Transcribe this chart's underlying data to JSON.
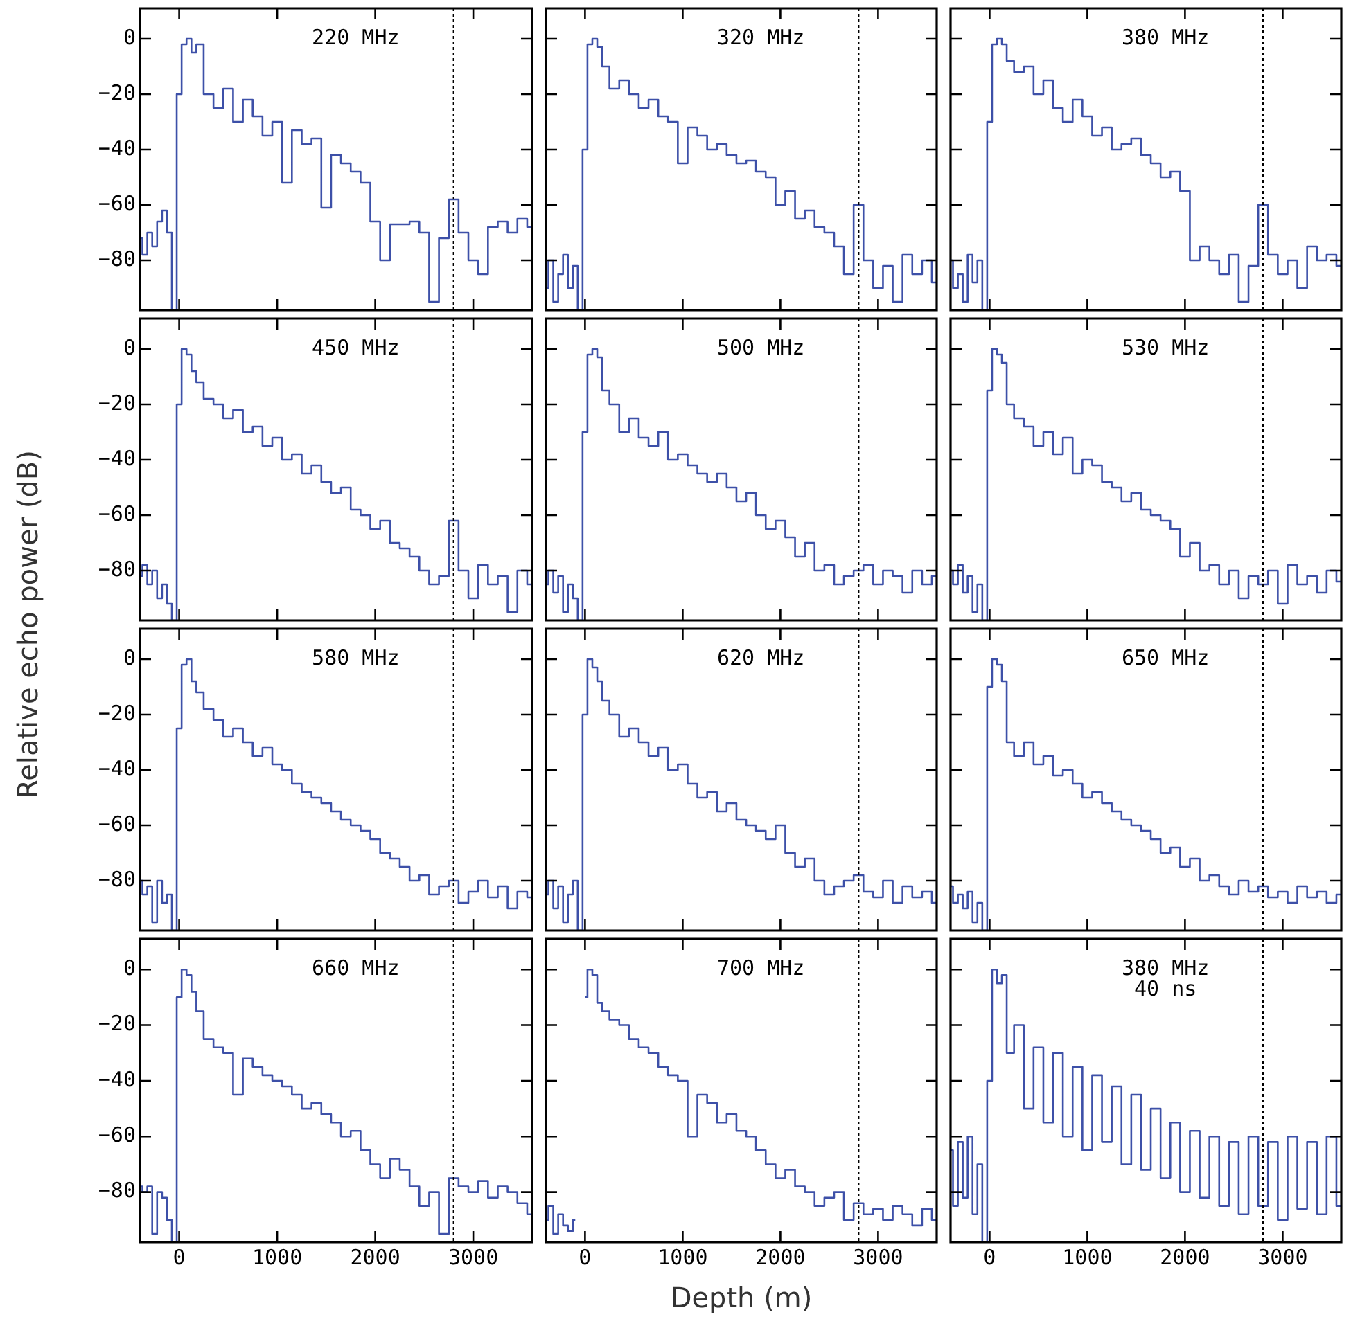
{
  "chart_data": [
    {
      "type": "step",
      "marker": "none",
      "color": "#3d50a8",
      "tick_labels": "y",
      "xlim": [
        -400,
        3600
      ],
      "ylim": [
        -98,
        11
      ],
      "xticks": [
        0,
        1000,
        2000,
        3000
      ],
      "yticks": [
        0,
        -20,
        -40,
        -60,
        -80
      ],
      "annotations": [
        "220 MHz"
      ],
      "ref_lines": [
        {
          "axis": "x",
          "value": 2800,
          "color": "#000000",
          "line_style": "dotted"
        }
      ],
      "x": [
        -400,
        -350,
        -300,
        -250,
        -200,
        -150,
        -100,
        -50,
        0,
        50,
        100,
        150,
        200,
        300,
        400,
        500,
        600,
        700,
        800,
        900,
        1000,
        1100,
        1200,
        1300,
        1400,
        1500,
        1600,
        1700,
        1800,
        1900,
        2000,
        2100,
        2200,
        2300,
        2400,
        2500,
        2600,
        2700,
        2800,
        2900,
        3000,
        3100,
        3200,
        3300,
        3400,
        3500,
        3600
      ],
      "values": [
        -72,
        -78,
        -70,
        -75,
        -66,
        -62,
        -70,
        -98,
        -20,
        -2,
        0,
        -5,
        -2,
        -20,
        -25,
        -18,
        -30,
        -22,
        -28,
        -35,
        -30,
        -52,
        -33,
        -38,
        -36,
        -61,
        -42,
        -45,
        -48,
        -52,
        -66,
        -80,
        -67,
        -67,
        -66,
        -70,
        -95,
        -72,
        -58,
        -70,
        -80,
        -85,
        -68,
        -66,
        -70,
        -65,
        -68
      ]
    },
    {
      "type": "step",
      "marker": "none",
      "color": "#3d50a8",
      "tick_labels": false,
      "xlim": [
        -400,
        3600
      ],
      "ylim": [
        -98,
        11
      ],
      "xticks": [
        0,
        1000,
        2000,
        3000
      ],
      "yticks": [
        0,
        -20,
        -40,
        -60,
        -80
      ],
      "annotations": [
        "320 MHz"
      ],
      "ref_lines": [
        {
          "axis": "x",
          "value": 2800,
          "color": "#000000",
          "line_style": "dotted"
        }
      ],
      "x": [
        -400,
        -350,
        -300,
        -250,
        -200,
        -150,
        -100,
        -50,
        0,
        50,
        100,
        150,
        200,
        300,
        400,
        500,
        600,
        700,
        800,
        900,
        1000,
        1100,
        1200,
        1300,
        1400,
        1500,
        1600,
        1700,
        1800,
        1900,
        2000,
        2100,
        2200,
        2300,
        2400,
        2500,
        2600,
        2700,
        2800,
        2900,
        3000,
        3100,
        3200,
        3300,
        3400,
        3500,
        3600
      ],
      "values": [
        -90,
        -80,
        -95,
        -85,
        -78,
        -90,
        -82,
        -98,
        -40,
        -2,
        0,
        -3,
        -10,
        -18,
        -15,
        -20,
        -25,
        -22,
        -28,
        -30,
        -45,
        -32,
        -35,
        -40,
        -38,
        -42,
        -45,
        -44,
        -48,
        -50,
        -60,
        -55,
        -65,
        -62,
        -68,
        -70,
        -75,
        -85,
        -60,
        -80,
        -90,
        -82,
        -95,
        -78,
        -85,
        -80,
        -88
      ]
    },
    {
      "type": "step",
      "marker": "none",
      "color": "#3d50a8",
      "tick_labels": false,
      "xlim": [
        -400,
        3600
      ],
      "ylim": [
        -98,
        11
      ],
      "xticks": [
        0,
        1000,
        2000,
        3000
      ],
      "yticks": [
        0,
        -20,
        -40,
        -60,
        -80
      ],
      "annotations": [
        "380 MHz"
      ],
      "ref_lines": [
        {
          "axis": "x",
          "value": 2800,
          "color": "#000000",
          "line_style": "dotted"
        }
      ],
      "x": [
        -400,
        -350,
        -300,
        -250,
        -200,
        -150,
        -100,
        -50,
        0,
        50,
        100,
        150,
        200,
        300,
        400,
        500,
        600,
        700,
        800,
        900,
        1000,
        1100,
        1200,
        1300,
        1400,
        1500,
        1600,
        1700,
        1800,
        1900,
        2000,
        2100,
        2200,
        2300,
        2400,
        2500,
        2600,
        2700,
        2800,
        2900,
        3000,
        3100,
        3200,
        3300,
        3400,
        3500,
        3600
      ],
      "values": [
        -80,
        -90,
        -85,
        -95,
        -78,
        -88,
        -80,
        -98,
        -30,
        -2,
        0,
        -2,
        -8,
        -12,
        -10,
        -20,
        -15,
        -25,
        -30,
        -22,
        -28,
        -35,
        -32,
        -40,
        -38,
        -36,
        -42,
        -45,
        -50,
        -48,
        -55,
        -80,
        -75,
        -80,
        -85,
        -78,
        -95,
        -82,
        -60,
        -78,
        -85,
        -80,
        -90,
        -75,
        -80,
        -78,
        -82
      ]
    },
    {
      "type": "step",
      "marker": "none",
      "color": "#3d50a8",
      "tick_labels": "y",
      "xlim": [
        -400,
        3600
      ],
      "ylim": [
        -98,
        11
      ],
      "xticks": [
        0,
        1000,
        2000,
        3000
      ],
      "yticks": [
        0,
        -20,
        -40,
        -60,
        -80
      ],
      "annotations": [
        "450 MHz"
      ],
      "ref_lines": [
        {
          "axis": "x",
          "value": 2800,
          "color": "#000000",
          "line_style": "dotted"
        }
      ],
      "x": [
        -400,
        -350,
        -300,
        -250,
        -200,
        -150,
        -100,
        -50,
        0,
        50,
        100,
        150,
        200,
        300,
        400,
        500,
        600,
        700,
        800,
        900,
        1000,
        1100,
        1200,
        1300,
        1400,
        1500,
        1600,
        1700,
        1800,
        1900,
        2000,
        2100,
        2200,
        2300,
        2400,
        2500,
        2600,
        2700,
        2800,
        2900,
        3000,
        3100,
        3200,
        3300,
        3400,
        3500,
        3600
      ],
      "values": [
        -82,
        -78,
        -85,
        -80,
        -90,
        -85,
        -92,
        -98,
        -20,
        0,
        -2,
        -8,
        -12,
        -18,
        -20,
        -25,
        -22,
        -30,
        -28,
        -35,
        -32,
        -40,
        -38,
        -45,
        -42,
        -48,
        -52,
        -50,
        -58,
        -60,
        -65,
        -62,
        -70,
        -72,
        -75,
        -80,
        -85,
        -82,
        -62,
        -80,
        -90,
        -78,
        -85,
        -82,
        -95,
        -80,
        -85
      ]
    },
    {
      "type": "step",
      "marker": "none",
      "color": "#3d50a8",
      "tick_labels": false,
      "xlim": [
        -400,
        3600
      ],
      "ylim": [
        -98,
        11
      ],
      "xticks": [
        0,
        1000,
        2000,
        3000
      ],
      "yticks": [
        0,
        -20,
        -40,
        -60,
        -80
      ],
      "annotations": [
        "500 MHz"
      ],
      "ref_lines": [
        {
          "axis": "x",
          "value": 2800,
          "color": "#000000",
          "line_style": "dotted"
        }
      ],
      "x": [
        -400,
        -350,
        -300,
        -250,
        -200,
        -150,
        -100,
        -50,
        0,
        50,
        100,
        150,
        200,
        300,
        400,
        500,
        600,
        700,
        800,
        900,
        1000,
        1100,
        1200,
        1300,
        1400,
        1500,
        1600,
        1700,
        1800,
        1900,
        2000,
        2100,
        2200,
        2300,
        2400,
        2500,
        2600,
        2700,
        2800,
        2900,
        3000,
        3100,
        3200,
        3300,
        3400,
        3500,
        3600
      ],
      "values": [
        -85,
        -80,
        -88,
        -82,
        -95,
        -85,
        -90,
        -98,
        -30,
        -2,
        0,
        -3,
        -15,
        -20,
        -30,
        -25,
        -32,
        -35,
        -30,
        -40,
        -38,
        -42,
        -45,
        -48,
        -45,
        -50,
        -55,
        -52,
        -60,
        -65,
        -62,
        -68,
        -75,
        -70,
        -80,
        -78,
        -85,
        -82,
        -80,
        -78,
        -85,
        -80,
        -82,
        -88,
        -80,
        -85,
        -82
      ]
    },
    {
      "type": "step",
      "marker": "none",
      "color": "#3d50a8",
      "tick_labels": false,
      "xlim": [
        -400,
        3600
      ],
      "ylim": [
        -98,
        11
      ],
      "xticks": [
        0,
        1000,
        2000,
        3000
      ],
      "yticks": [
        0,
        -20,
        -40,
        -60,
        -80
      ],
      "annotations": [
        "530 MHz"
      ],
      "ref_lines": [
        {
          "axis": "x",
          "value": 2800,
          "color": "#000000",
          "line_style": "dotted"
        }
      ],
      "x": [
        -400,
        -350,
        -300,
        -250,
        -200,
        -150,
        -100,
        -50,
        0,
        50,
        100,
        150,
        200,
        300,
        400,
        500,
        600,
        700,
        800,
        900,
        1000,
        1100,
        1200,
        1300,
        1400,
        1500,
        1600,
        1700,
        1800,
        1900,
        2000,
        2100,
        2200,
        2300,
        2400,
        2500,
        2600,
        2700,
        2800,
        2900,
        3000,
        3100,
        3200,
        3300,
        3400,
        3500,
        3600
      ],
      "values": [
        -80,
        -85,
        -78,
        -88,
        -82,
        -95,
        -85,
        -98,
        -15,
        0,
        -2,
        -5,
        -20,
        -25,
        -28,
        -35,
        -30,
        -38,
        -32,
        -45,
        -40,
        -42,
        -48,
        -50,
        -55,
        -52,
        -58,
        -60,
        -62,
        -65,
        -75,
        -70,
        -80,
        -78,
        -85,
        -80,
        -90,
        -82,
        -85,
        -80,
        -92,
        -78,
        -85,
        -82,
        -88,
        -80,
        -84
      ]
    },
    {
      "type": "step",
      "marker": "none",
      "color": "#3d50a8",
      "tick_labels": "y",
      "ylabel": "Relative echo power (dB)",
      "xlim": [
        -400,
        3600
      ],
      "ylim": [
        -98,
        11
      ],
      "xticks": [
        0,
        1000,
        2000,
        3000
      ],
      "yticks": [
        0,
        -20,
        -40,
        -60,
        -80
      ],
      "annotations": [
        "580 MHz"
      ],
      "ref_lines": [
        {
          "axis": "x",
          "value": 2800,
          "color": "#000000",
          "line_style": "dotted"
        }
      ],
      "x": [
        -400,
        -350,
        -300,
        -250,
        -200,
        -150,
        -100,
        -50,
        0,
        50,
        100,
        150,
        200,
        300,
        400,
        500,
        600,
        700,
        800,
        900,
        1000,
        1100,
        1200,
        1300,
        1400,
        1500,
        1600,
        1700,
        1800,
        1900,
        2000,
        2100,
        2200,
        2300,
        2400,
        2500,
        2600,
        2700,
        2800,
        2900,
        3000,
        3100,
        3200,
        3300,
        3400,
        3500,
        3600
      ],
      "values": [
        -80,
        -85,
        -82,
        -95,
        -80,
        -88,
        -85,
        -98,
        -25,
        -2,
        0,
        -8,
        -12,
        -18,
        -22,
        -28,
        -25,
        -30,
        -35,
        -32,
        -38,
        -40,
        -45,
        -48,
        -50,
        -52,
        -55,
        -58,
        -60,
        -62,
        -65,
        -70,
        -72,
        -75,
        -80,
        -78,
        -85,
        -82,
        -80,
        -88,
        -84,
        -80,
        -86,
        -82,
        -90,
        -84,
        -86
      ]
    },
    {
      "type": "step",
      "marker": "none",
      "color": "#3d50a8",
      "tick_labels": false,
      "xlim": [
        -400,
        3600
      ],
      "ylim": [
        -98,
        11
      ],
      "xticks": [
        0,
        1000,
        2000,
        3000
      ],
      "yticks": [
        0,
        -20,
        -40,
        -60,
        -80
      ],
      "annotations": [
        "620 MHz"
      ],
      "ref_lines": [
        {
          "axis": "x",
          "value": 2800,
          "color": "#000000",
          "line_style": "dotted"
        }
      ],
      "x": [
        -400,
        -350,
        -300,
        -250,
        -200,
        -150,
        -100,
        -50,
        0,
        50,
        100,
        150,
        200,
        300,
        400,
        500,
        600,
        700,
        800,
        900,
        1000,
        1100,
        1200,
        1300,
        1400,
        1500,
        1600,
        1700,
        1800,
        1900,
        2000,
        2100,
        2200,
        2300,
        2400,
        2500,
        2600,
        2700,
        2800,
        2900,
        3000,
        3100,
        3200,
        3300,
        3400,
        3500,
        3600
      ],
      "values": [
        -85,
        -80,
        -90,
        -82,
        -95,
        -85,
        -80,
        -98,
        -20,
        0,
        -3,
        -8,
        -15,
        -20,
        -28,
        -25,
        -30,
        -35,
        -32,
        -40,
        -38,
        -45,
        -50,
        -48,
        -55,
        -52,
        -58,
        -60,
        -62,
        -65,
        -60,
        -70,
        -75,
        -72,
        -80,
        -85,
        -82,
        -80,
        -78,
        -84,
        -86,
        -80,
        -88,
        -82,
        -86,
        -84,
        -88
      ]
    },
    {
      "type": "step",
      "marker": "none",
      "color": "#3d50a8",
      "tick_labels": false,
      "xlim": [
        -400,
        3600
      ],
      "ylim": [
        -98,
        11
      ],
      "xticks": [
        0,
        1000,
        2000,
        3000
      ],
      "yticks": [
        0,
        -20,
        -40,
        -60,
        -80
      ],
      "annotations": [
        "650 MHz"
      ],
      "ref_lines": [
        {
          "axis": "x",
          "value": 2800,
          "color": "#000000",
          "line_style": "dotted"
        }
      ],
      "x": [
        -400,
        -350,
        -300,
        -250,
        -200,
        -150,
        -100,
        -50,
        0,
        50,
        100,
        150,
        200,
        300,
        400,
        500,
        600,
        700,
        800,
        900,
        1000,
        1100,
        1200,
        1300,
        1400,
        1500,
        1600,
        1700,
        1800,
        1900,
        2000,
        2100,
        2200,
        2300,
        2400,
        2500,
        2600,
        2700,
        2800,
        2900,
        3000,
        3100,
        3200,
        3300,
        3400,
        3500,
        3600
      ],
      "values": [
        -82,
        -88,
        -85,
        -90,
        -84,
        -95,
        -88,
        -98,
        -10,
        0,
        -2,
        -8,
        -30,
        -35,
        -30,
        -38,
        -35,
        -42,
        -40,
        -45,
        -50,
        -48,
        -52,
        -55,
        -58,
        -60,
        -62,
        -65,
        -70,
        -68,
        -75,
        -72,
        -80,
        -78,
        -82,
        -85,
        -80,
        -84,
        -82,
        -86,
        -84,
        -88,
        -82,
        -86,
        -84,
        -88,
        -85
      ]
    },
    {
      "type": "step",
      "marker": "none",
      "color": "#3d50a8",
      "xlim": [
        -400,
        3600
      ],
      "ylim": [
        -98,
        11
      ],
      "xticks": [
        0,
        1000,
        2000,
        3000
      ],
      "yticks": [
        0,
        -20,
        -40,
        -60,
        -80
      ],
      "annotations": [
        "660 MHz"
      ],
      "ref_lines": [
        {
          "axis": "x",
          "value": 2800,
          "color": "#000000",
          "line_style": "dotted"
        }
      ],
      "x": [
        -400,
        -350,
        -300,
        -250,
        -200,
        -150,
        -100,
        -50,
        0,
        50,
        100,
        150,
        200,
        300,
        400,
        500,
        600,
        700,
        800,
        900,
        1000,
        1100,
        1200,
        1300,
        1400,
        1500,
        1600,
        1700,
        1800,
        1900,
        2000,
        2100,
        2200,
        2300,
        2400,
        2500,
        2600,
        2700,
        2800,
        2900,
        3000,
        3100,
        3200,
        3300,
        3400,
        3500,
        3600
      ],
      "values": [
        -78,
        -80,
        -78,
        -95,
        -80,
        -82,
        -90,
        -98,
        -10,
        0,
        -2,
        -8,
        -15,
        -25,
        -28,
        -30,
        -45,
        -32,
        -35,
        -38,
        -40,
        -42,
        -45,
        -50,
        -48,
        -52,
        -55,
        -60,
        -58,
        -65,
        -70,
        -75,
        -68,
        -72,
        -78,
        -85,
        -80,
        -95,
        -75,
        -78,
        -80,
        -76,
        -82,
        -78,
        -80,
        -84,
        -88
      ]
    },
    {
      "type": "step",
      "marker": "none",
      "color": "#3d50a8",
      "tick_labels": "x",
      "xlabel": "Depth (m)",
      "xlim": [
        -400,
        3600
      ],
      "ylim": [
        -98,
        11
      ],
      "xticks": [
        0,
        1000,
        2000,
        3000
      ],
      "yticks": [
        0,
        -20,
        -40,
        -60,
        -80
      ],
      "annotations": [
        "700 MHz"
      ],
      "ref_lines": [
        {
          "axis": "x",
          "value": 2800,
          "color": "#000000",
          "line_style": "dotted"
        }
      ],
      "x": [
        -400,
        -350,
        -300,
        -250,
        -200,
        -150,
        -100,
        -50,
        0,
        50,
        100,
        150,
        200,
        300,
        400,
        500,
        600,
        700,
        800,
        900,
        1000,
        1100,
        1200,
        1300,
        1400,
        1500,
        1600,
        1700,
        1800,
        1900,
        2000,
        2100,
        2200,
        2300,
        2400,
        2500,
        2600,
        2700,
        2800,
        2900,
        3000,
        3100,
        3200,
        3300,
        3400,
        3500,
        3600
      ],
      "values": [
        -90,
        -85,
        -95,
        -88,
        -92,
        -94,
        -90,
        null,
        -10,
        0,
        -2,
        -12,
        -15,
        -18,
        -20,
        -25,
        -28,
        -30,
        -35,
        -38,
        -40,
        -60,
        -45,
        -48,
        -55,
        -52,
        -58,
        -60,
        -65,
        -70,
        -75,
        -72,
        -78,
        -80,
        -85,
        -82,
        -80,
        -90,
        -84,
        -88,
        -86,
        -90,
        -85,
        -88,
        -92,
        -86,
        -90
      ]
    },
    {
      "type": "step",
      "marker": "none",
      "color": "#3d50a8",
      "tick_labels": "x",
      "xlim": [
        -400,
        3600
      ],
      "ylim": [
        -98,
        11
      ],
      "xticks": [
        0,
        1000,
        2000,
        3000
      ],
      "yticks": [
        0,
        -20,
        -40,
        -60,
        -80
      ],
      "annotations": [
        "380 MHz",
        "40 ns"
      ],
      "ref_lines": [
        {
          "axis": "x",
          "value": 2800,
          "color": "#000000",
          "line_style": "dotted"
        }
      ],
      "x": [
        -400,
        -350,
        -300,
        -250,
        -200,
        -150,
        -100,
        -50,
        0,
        50,
        100,
        150,
        200,
        300,
        400,
        500,
        600,
        700,
        800,
        900,
        1000,
        1100,
        1200,
        1300,
        1400,
        1500,
        1600,
        1700,
        1800,
        1900,
        2000,
        2100,
        2200,
        2300,
        2400,
        2500,
        2600,
        2700,
        2800,
        2900,
        3000,
        3100,
        3200,
        3300,
        3400,
        3500,
        3600
      ],
      "values": [
        -65,
        -85,
        -62,
        -82,
        -60,
        -88,
        -70,
        -98,
        -40,
        0,
        -5,
        -2,
        -30,
        -20,
        -50,
        -28,
        -55,
        -30,
        -60,
        -35,
        -65,
        -38,
        -62,
        -42,
        -70,
        -45,
        -72,
        -50,
        -75,
        -55,
        -80,
        -58,
        -82,
        -60,
        -85,
        -62,
        -88,
        -60,
        -85,
        -62,
        -90,
        -60,
        -86,
        -62,
        -88,
        -60,
        -85
      ]
    }
  ]
}
